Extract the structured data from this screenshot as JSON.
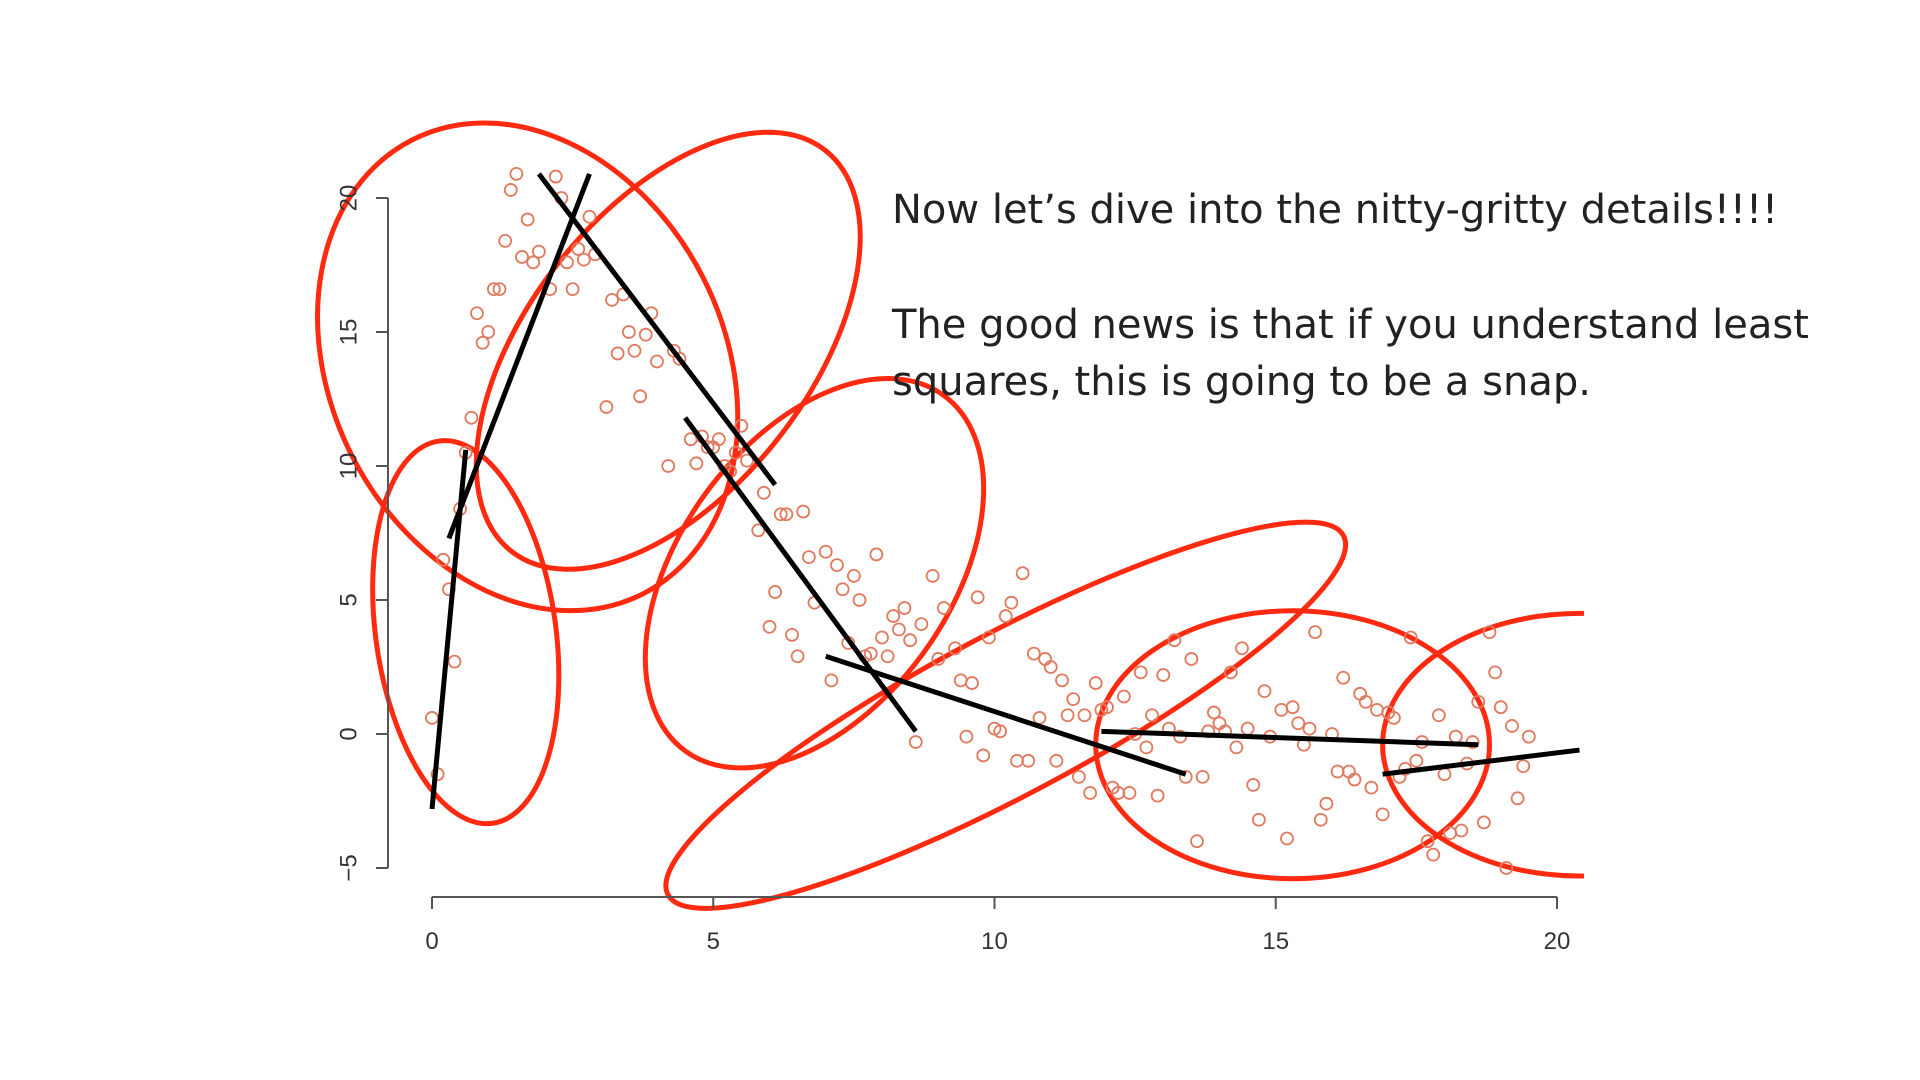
{
  "slide": {
    "heading": "Now let’s dive into the nitty-gritty details!!!!",
    "body": "The good news is that if you understand least squares, this is going to be a snap."
  },
  "colors": {
    "points": "#e07a5f",
    "ellipses": "#ff2a10",
    "segments": "#000000",
    "axes": "#555555"
  },
  "chart_data": {
    "type": "scatter",
    "xlim": [
      0,
      20
    ],
    "ylim": [
      -5,
      20
    ],
    "x_ticks": [
      0,
      5,
      10,
      15,
      20
    ],
    "y_ticks": [
      -5,
      0,
      5,
      10,
      15,
      20
    ],
    "grid": false,
    "points": [
      [
        0.0,
        0.6
      ],
      [
        0.1,
        -1.5
      ],
      [
        0.2,
        6.5
      ],
      [
        0.3,
        5.4
      ],
      [
        0.4,
        2.7
      ],
      [
        0.5,
        8.4
      ],
      [
        0.6,
        10.5
      ],
      [
        0.7,
        11.8
      ],
      [
        0.8,
        15.7
      ],
      [
        0.9,
        14.6
      ],
      [
        1.0,
        15.0
      ],
      [
        1.1,
        16.6
      ],
      [
        1.2,
        16.6
      ],
      [
        1.3,
        18.4
      ],
      [
        1.4,
        20.3
      ],
      [
        1.5,
        20.9
      ],
      [
        1.6,
        17.8
      ],
      [
        1.7,
        19.2
      ],
      [
        1.8,
        17.6
      ],
      [
        1.9,
        18.0
      ],
      [
        2.1,
        16.6
      ],
      [
        2.2,
        20.8
      ],
      [
        2.3,
        20.0
      ],
      [
        2.4,
        17.6
      ],
      [
        2.5,
        16.6
      ],
      [
        2.6,
        18.1
      ],
      [
        2.7,
        17.7
      ],
      [
        2.8,
        19.3
      ],
      [
        2.9,
        17.9
      ],
      [
        3.1,
        12.2
      ],
      [
        3.2,
        16.2
      ],
      [
        3.3,
        14.2
      ],
      [
        3.4,
        16.4
      ],
      [
        3.5,
        15.0
      ],
      [
        3.6,
        14.3
      ],
      [
        3.7,
        12.6
      ],
      [
        3.8,
        14.9
      ],
      [
        3.9,
        15.7
      ],
      [
        4.0,
        13.9
      ],
      [
        4.2,
        10.0
      ],
      [
        4.3,
        14.3
      ],
      [
        4.4,
        14.0
      ],
      [
        4.6,
        11.0
      ],
      [
        4.7,
        10.1
      ],
      [
        4.8,
        11.1
      ],
      [
        4.9,
        10.7
      ],
      [
        5.0,
        10.7
      ],
      [
        5.1,
        11.0
      ],
      [
        5.2,
        10.0
      ],
      [
        5.3,
        9.8
      ],
      [
        5.4,
        10.5
      ],
      [
        5.5,
        11.5
      ],
      [
        5.6,
        10.2
      ],
      [
        5.8,
        7.6
      ],
      [
        5.9,
        9.0
      ],
      [
        6.0,
        4.0
      ],
      [
        6.1,
        5.3
      ],
      [
        6.2,
        8.2
      ],
      [
        6.3,
        8.2
      ],
      [
        6.4,
        3.7
      ],
      [
        6.5,
        2.9
      ],
      [
        6.6,
        8.3
      ],
      [
        6.7,
        6.6
      ],
      [
        6.8,
        4.9
      ],
      [
        7.0,
        6.8
      ],
      [
        7.1,
        2.0
      ],
      [
        7.2,
        6.3
      ],
      [
        7.3,
        5.4
      ],
      [
        7.4,
        3.4
      ],
      [
        7.5,
        5.9
      ],
      [
        7.6,
        5.0
      ],
      [
        7.7,
        2.9
      ],
      [
        7.8,
        3.0
      ],
      [
        7.9,
        6.7
      ],
      [
        8.0,
        3.6
      ],
      [
        8.1,
        2.9
      ],
      [
        8.2,
        4.4
      ],
      [
        8.3,
        3.9
      ],
      [
        8.4,
        4.7
      ],
      [
        8.5,
        3.5
      ],
      [
        8.6,
        -0.3
      ],
      [
        8.7,
        4.1
      ],
      [
        8.9,
        5.9
      ],
      [
        9.0,
        2.8
      ],
      [
        9.1,
        4.7
      ],
      [
        9.3,
        3.2
      ],
      [
        9.4,
        2.0
      ],
      [
        9.5,
        -0.1
      ],
      [
        9.6,
        1.9
      ],
      [
        9.7,
        5.1
      ],
      [
        9.8,
        -0.8
      ],
      [
        9.9,
        3.6
      ],
      [
        10.0,
        0.2
      ],
      [
        10.1,
        0.1
      ],
      [
        10.2,
        4.4
      ],
      [
        10.3,
        4.9
      ],
      [
        10.4,
        -1.0
      ],
      [
        10.5,
        6.0
      ],
      [
        10.6,
        -1.0
      ],
      [
        10.7,
        3.0
      ],
      [
        10.8,
        0.6
      ],
      [
        10.9,
        2.8
      ],
      [
        11.0,
        2.5
      ],
      [
        11.1,
        -1.0
      ],
      [
        11.2,
        2.0
      ],
      [
        11.3,
        0.7
      ],
      [
        11.4,
        1.3
      ],
      [
        11.5,
        -1.6
      ],
      [
        11.6,
        0.7
      ],
      [
        11.7,
        -2.2
      ],
      [
        11.8,
        1.9
      ],
      [
        11.9,
        0.9
      ],
      [
        12.0,
        1.0
      ],
      [
        12.1,
        -2.0
      ],
      [
        12.2,
        -2.2
      ],
      [
        12.3,
        1.4
      ],
      [
        12.4,
        -2.2
      ],
      [
        12.5,
        0.0
      ],
      [
        12.6,
        2.3
      ],
      [
        12.7,
        -0.5
      ],
      [
        12.8,
        0.7
      ],
      [
        12.9,
        -2.3
      ],
      [
        13.0,
        2.2
      ],
      [
        13.1,
        0.2
      ],
      [
        13.2,
        3.5
      ],
      [
        13.3,
        -0.1
      ],
      [
        13.4,
        -1.6
      ],
      [
        13.5,
        2.8
      ],
      [
        13.6,
        -4.0
      ],
      [
        13.7,
        -1.6
      ],
      [
        13.8,
        0.1
      ],
      [
        13.9,
        0.8
      ],
      [
        14.0,
        0.4
      ],
      [
        14.1,
        0.1
      ],
      [
        14.2,
        2.3
      ],
      [
        14.3,
        -0.5
      ],
      [
        14.4,
        3.2
      ],
      [
        14.5,
        0.2
      ],
      [
        14.6,
        -1.9
      ],
      [
        14.7,
        -3.2
      ],
      [
        14.8,
        1.6
      ],
      [
        14.9,
        -0.1
      ],
      [
        15.1,
        0.9
      ],
      [
        15.2,
        -3.9
      ],
      [
        15.3,
        1.0
      ],
      [
        15.4,
        0.4
      ],
      [
        15.5,
        -0.4
      ],
      [
        15.6,
        0.2
      ],
      [
        15.7,
        3.8
      ],
      [
        15.8,
        -3.2
      ],
      [
        15.9,
        -2.6
      ],
      [
        16.0,
        0.0
      ],
      [
        16.1,
        -1.4
      ],
      [
        16.2,
        2.1
      ],
      [
        16.3,
        -1.4
      ],
      [
        16.4,
        -1.7
      ],
      [
        16.5,
        1.5
      ],
      [
        16.6,
        1.2
      ],
      [
        16.7,
        -2.0
      ],
      [
        16.8,
        0.9
      ],
      [
        16.9,
        -3.0
      ],
      [
        17.0,
        0.8
      ],
      [
        17.1,
        0.6
      ],
      [
        17.2,
        -1.6
      ],
      [
        17.3,
        -1.3
      ],
      [
        17.4,
        3.6
      ],
      [
        17.5,
        -1.0
      ],
      [
        17.6,
        -0.3
      ],
      [
        17.7,
        -4.0
      ],
      [
        17.8,
        -4.5
      ],
      [
        17.9,
        0.7
      ],
      [
        18.0,
        -1.5
      ],
      [
        18.1,
        -3.7
      ],
      [
        18.2,
        -0.1
      ],
      [
        18.3,
        -3.6
      ],
      [
        18.4,
        -1.1
      ],
      [
        18.5,
        -0.3
      ],
      [
        18.6,
        1.2
      ],
      [
        18.7,
        -3.3
      ],
      [
        18.8,
        3.8
      ],
      [
        18.9,
        2.3
      ],
      [
        19.0,
        1.0
      ],
      [
        19.1,
        -5.0
      ],
      [
        19.2,
        0.3
      ],
      [
        19.3,
        -2.4
      ],
      [
        19.4,
        -1.2
      ],
      [
        19.5,
        -0.1
      ]
    ],
    "segments": [
      {
        "x1": 0.0,
        "y1": -2.8,
        "x2": 0.6,
        "y2": 10.6
      },
      {
        "x1": 0.3,
        "y1": 7.3,
        "x2": 2.8,
        "y2": 20.9
      },
      {
        "x1": 1.9,
        "y1": 20.9,
        "x2": 6.1,
        "y2": 9.3
      },
      {
        "x1": 4.5,
        "y1": 11.8,
        "x2": 8.6,
        "y2": 0.1
      },
      {
        "x1": 7.0,
        "y1": 2.9,
        "x2": 13.4,
        "y2": -1.5
      },
      {
        "x1": 11.9,
        "y1": 0.1,
        "x2": 18.6,
        "y2": -0.4
      },
      {
        "x1": 16.9,
        "y1": -1.5,
        "x2": 20.4,
        "y2": -0.6
      }
    ],
    "ellipses": [
      {
        "cx": 0.6,
        "cy": 3.8,
        "rx": 1.6,
        "ry": 7.2,
        "rot": 8
      },
      {
        "cx": 1.7,
        "cy": 13.7,
        "rx": 3.5,
        "ry": 9.5,
        "rot": 27
      },
      {
        "cx": 4.2,
        "cy": 14.3,
        "rx": 2.5,
        "ry": 9.5,
        "rot": -38
      },
      {
        "cx": 6.8,
        "cy": 6.0,
        "rx": 2.4,
        "ry": 8.2,
        "rot": -36
      },
      {
        "cx": 10.2,
        "cy": 0.7,
        "rx": 6.8,
        "ry": 3.0,
        "rot": 28
      },
      {
        "cx": 15.3,
        "cy": -0.4,
        "rx": 3.5,
        "ry": 5.0,
        "rot": 0
      },
      {
        "cx": 20.4,
        "cy": -0.4,
        "rx": 3.5,
        "ry": 4.9,
        "rot": 0
      }
    ]
  }
}
